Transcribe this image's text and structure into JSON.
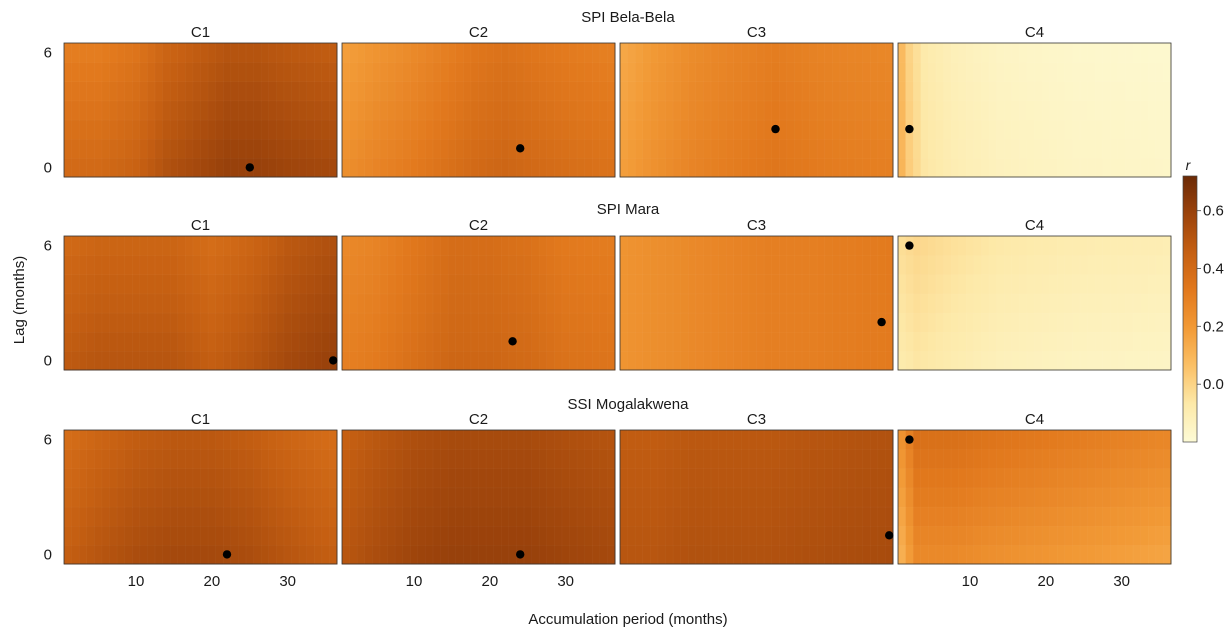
{
  "chart_data": {
    "type": "heatmap",
    "xlabel": "Accumulation period (months)",
    "ylabel": "Lag (months)",
    "x_range": [
      1,
      36
    ],
    "y_range": [
      0,
      6
    ],
    "x_ticks": [
      10,
      20,
      30
    ],
    "y_ticks": [
      0,
      6
    ],
    "legend": {
      "title": "r",
      "placement": "right",
      "range": [
        -0.2,
        0.72
      ],
      "ticks": [
        0.0,
        0.2,
        0.4,
        0.6
      ],
      "tick_labels": [
        "0.0",
        "0.2",
        "0.4",
        "0.6"
      ],
      "colors": [
        "#fdfbd6",
        "#fde9a8",
        "#fbc066",
        "#f29a36",
        "#e2791d",
        "#c55f12",
        "#9c430b",
        "#6b2a06"
      ]
    },
    "rows": [
      {
        "title": "SPI Bela-Bela",
        "panels": [
          {
            "title": "C1",
            "x_tick_labels": [
              "",
              "",
              ""
            ],
            "max_point": {
              "x": 25,
              "y": 0
            },
            "profile": [
              [
                1,
                0.4
              ],
              [
                5,
                0.4
              ],
              [
                10,
                0.44
              ],
              [
                14,
                0.52
              ],
              [
                18,
                0.56
              ],
              [
                22,
                0.6
              ],
              [
                26,
                0.6
              ],
              [
                30,
                0.58
              ],
              [
                36,
                0.56
              ]
            ],
            "lag_slope": -0.015
          },
          {
            "title": "C2",
            "x_tick_labels": [
              "",
              "",
              ""
            ],
            "max_point": {
              "x": 24,
              "y": 1
            },
            "profile": [
              [
                1,
                0.24
              ],
              [
                5,
                0.28
              ],
              [
                10,
                0.32
              ],
              [
                14,
                0.36
              ],
              [
                18,
                0.4
              ],
              [
                22,
                0.42
              ],
              [
                26,
                0.4
              ],
              [
                30,
                0.38
              ],
              [
                36,
                0.36
              ]
            ],
            "lag_slope": -0.01
          },
          {
            "title": "C3",
            "x_tick_labels": [
              "",
              "",
              ""
            ],
            "max_point": {
              "x": 21,
              "y": 2
            },
            "profile": [
              [
                1,
                0.18
              ],
              [
                5,
                0.23
              ],
              [
                10,
                0.28
              ],
              [
                15,
                0.31
              ],
              [
                21,
                0.34
              ],
              [
                26,
                0.32
              ],
              [
                30,
                0.31
              ],
              [
                36,
                0.3
              ]
            ],
            "lag_slope": -0.005
          },
          {
            "title": "C4",
            "x_tick_labels": [
              "",
              "",
              ""
            ],
            "max_point": {
              "x": 2,
              "y": 2
            },
            "profile": [
              [
                1,
                0.1
              ],
              [
                2,
                0.02
              ],
              [
                4,
                -0.06
              ],
              [
                8,
                -0.1
              ],
              [
                14,
                -0.13
              ],
              [
                24,
                -0.15
              ],
              [
                36,
                -0.16
              ]
            ],
            "lag_slope": -0.003
          }
        ]
      },
      {
        "title": "SPI Mara",
        "panels": [
          {
            "title": "C1",
            "x_tick_labels": [
              "",
              "",
              ""
            ],
            "max_point": {
              "x": 36,
              "y": 0
            },
            "profile": [
              [
                1,
                0.48
              ],
              [
                5,
                0.5
              ],
              [
                10,
                0.5
              ],
              [
                15,
                0.5
              ],
              [
                20,
                0.46
              ],
              [
                25,
                0.5
              ],
              [
                30,
                0.56
              ],
              [
                36,
                0.6
              ]
            ],
            "lag_slope": -0.012
          },
          {
            "title": "C2",
            "x_tick_labels": [
              "",
              "",
              ""
            ],
            "max_point": {
              "x": 23,
              "y": 1
            },
            "profile": [
              [
                1,
                0.3
              ],
              [
                5,
                0.32
              ],
              [
                10,
                0.37
              ],
              [
                15,
                0.42
              ],
              [
                20,
                0.42
              ],
              [
                25,
                0.4
              ],
              [
                30,
                0.36
              ],
              [
                36,
                0.35
              ]
            ],
            "lag_slope": -0.006
          },
          {
            "title": "C3",
            "x_tick_labels": [
              "",
              "",
              ""
            ],
            "max_point": {
              "x": 35,
              "y": 2
            },
            "profile": [
              [
                1,
                0.22
              ],
              [
                5,
                0.24
              ],
              [
                10,
                0.26
              ],
              [
                15,
                0.28
              ],
              [
                20,
                0.3
              ],
              [
                25,
                0.3
              ],
              [
                30,
                0.31
              ],
              [
                36,
                0.32
              ]
            ],
            "lag_slope": 0.0
          },
          {
            "title": "C4",
            "x_tick_labels": [
              "",
              "",
              ""
            ],
            "max_point": {
              "x": 2,
              "y": 6
            },
            "profile": [
              [
                1,
                -0.08
              ],
              [
                3,
                -0.06
              ],
              [
                8,
                -0.09
              ],
              [
                14,
                -0.12
              ],
              [
                24,
                -0.14
              ],
              [
                36,
                -0.15
              ]
            ],
            "lag_slope": 0.008
          }
        ]
      },
      {
        "title": "SSI Mogalakwena",
        "panels": [
          {
            "title": "C1",
            "x_tick_labels": [
              "10",
              "20",
              "30"
            ],
            "max_point": {
              "x": 22,
              "y": 0
            },
            "profile": [
              [
                1,
                0.46
              ],
              [
                5,
                0.5
              ],
              [
                10,
                0.54
              ],
              [
                15,
                0.56
              ],
              [
                20,
                0.56
              ],
              [
                25,
                0.54
              ],
              [
                30,
                0.5
              ],
              [
                36,
                0.46
              ]
            ],
            "lag_slope": -0.012
          },
          {
            "title": "C2",
            "x_tick_labels": [
              "10",
              "20",
              "30"
            ],
            "max_point": {
              "x": 24,
              "y": 0
            },
            "profile": [
              [
                1,
                0.5
              ],
              [
                5,
                0.54
              ],
              [
                10,
                0.58
              ],
              [
                15,
                0.6
              ],
              [
                20,
                0.6
              ],
              [
                25,
                0.6
              ],
              [
                30,
                0.58
              ],
              [
                36,
                0.56
              ]
            ],
            "lag_slope": -0.008
          },
          {
            "title": "C3",
            "x_tick_labels": [
              "",
              "",
              ""
            ],
            "max_point": {
              "x": 36,
              "y": 1
            },
            "profile": [
              [
                1,
                0.5
              ],
              [
                5,
                0.5
              ],
              [
                10,
                0.52
              ],
              [
                15,
                0.52
              ],
              [
                20,
                0.52
              ],
              [
                25,
                0.53
              ],
              [
                30,
                0.54
              ],
              [
                36,
                0.55
              ]
            ],
            "lag_slope": -0.005
          },
          {
            "title": "C4",
            "x_tick_labels": [
              "10",
              "20",
              "30"
            ],
            "max_point": {
              "x": 2,
              "y": 6
            },
            "profile": [
              [
                1,
                0.12
              ],
              [
                3,
                0.26
              ],
              [
                8,
                0.26
              ],
              [
                12,
                0.24
              ],
              [
                18,
                0.22
              ],
              [
                24,
                0.2
              ],
              [
                30,
                0.18
              ],
              [
                36,
                0.16
              ]
            ],
            "lag_slope": 0.018
          }
        ]
      }
    ]
  }
}
